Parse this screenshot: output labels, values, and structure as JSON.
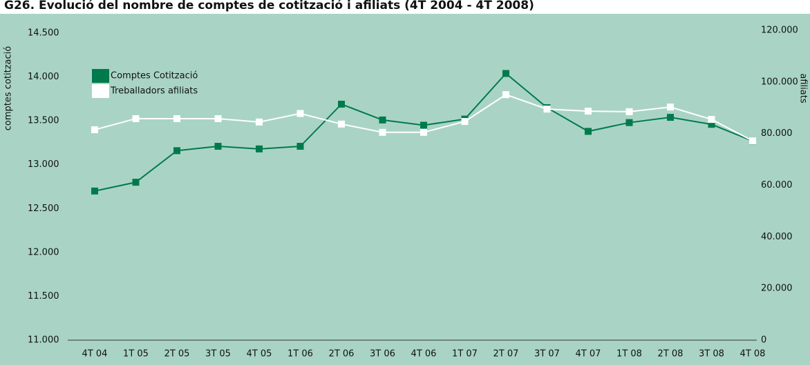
{
  "chart_data": {
    "type": "line",
    "title": "G26. Evolució del nombre de comptes de cotització i afiliats (4T 2004 - 4T 2008)",
    "ylabel": "comptes cotització",
    "y2label": "afiliats",
    "categories": [
      "4T 04",
      "1T 05",
      "2T 05",
      "3T 05",
      "4T 05",
      "1T 06",
      "2T 06",
      "3T 06",
      "4T 06",
      "1T 07",
      "2T 07",
      "3T 07",
      "4T 07",
      "1T 08",
      "2T 08",
      "3T 08",
      "4T 08"
    ],
    "series": [
      {
        "name": "Comptes Cotització",
        "color": "#007a4d",
        "axis": "y",
        "values": [
          12700,
          12800,
          13160,
          13210,
          13180,
          13210,
          13690,
          13510,
          13450,
          13520,
          14040,
          13650,
          13380,
          13480,
          13540,
          13460,
          13270
        ]
      },
      {
        "name": "Treballadors afiliats",
        "color": "#ffffff",
        "axis": "y2",
        "values": [
          81500,
          85800,
          85800,
          85800,
          84500,
          87800,
          83700,
          80500,
          80500,
          84700,
          95100,
          89500,
          88700,
          88500,
          90300,
          85500,
          77200
        ]
      }
    ],
    "ylim": [
      11000,
      14500
    ],
    "yticks": [
      {
        "value": 11000,
        "label": "11.000"
      },
      {
        "value": 11500,
        "label": "11.500"
      },
      {
        "value": 12000,
        "label": "12.000"
      },
      {
        "value": 12500,
        "label": "12.500"
      },
      {
        "value": 13000,
        "label": "13.000"
      },
      {
        "value": 13500,
        "label": "13.500"
      },
      {
        "value": 14000,
        "label": "14.000"
      },
      {
        "value": 14500,
        "label": "14.500"
      }
    ],
    "y2lim": [
      0,
      120000
    ],
    "y2ticks": [
      0,
      {
        "value": 20000,
        "label": "20.000"
      },
      {
        "value": 40000,
        "label": "40.000"
      },
      {
        "value": 60000,
        "label": "60.000"
      },
      {
        "value": 80000,
        "label": "80.000"
      },
      {
        "value": 100000,
        "label": "100.000"
      },
      {
        "value": 120000,
        "label": "120.000"
      }
    ],
    "legend": "upper left"
  }
}
